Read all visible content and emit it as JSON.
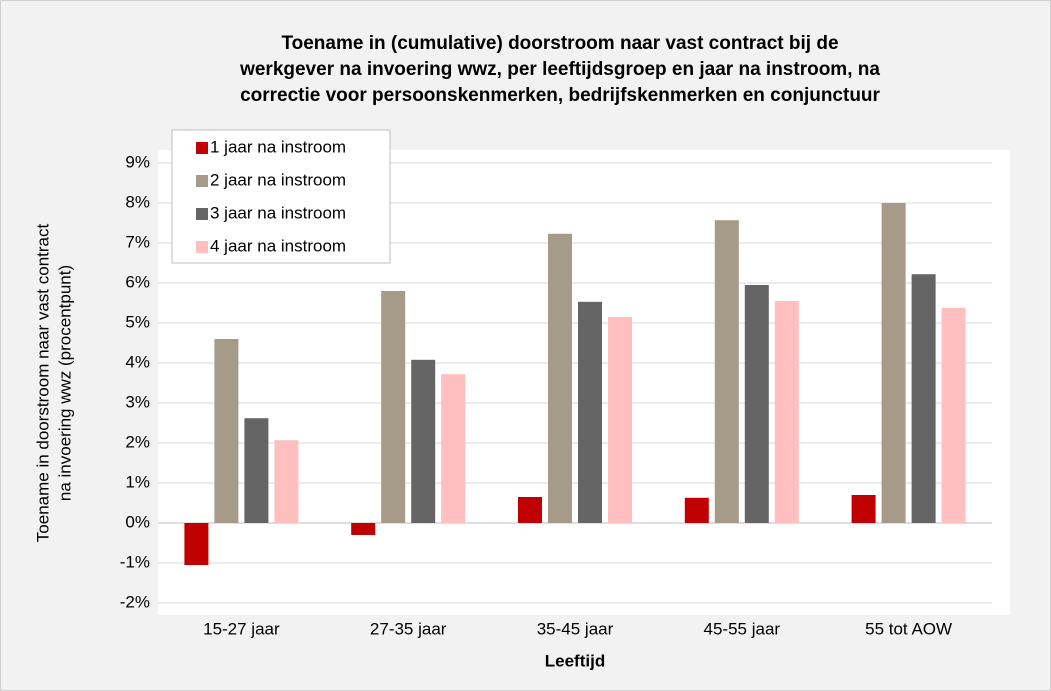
{
  "chart_data": {
    "type": "bar",
    "title": [
      "Toename in (cumulative) doorstroom naar vast contract bij de",
      "werkgever na invoering wwz, per leeftijdsgroep en jaar na instroom, na",
      "correctie voor persoonskenmerken, bedrijfskenmerken en conjunctuur"
    ],
    "ylabel": [
      "Toename in doorstroom naar vast contract",
      "na invoering wwz (procentpunt)"
    ],
    "xlabel": "Leeftijd",
    "categories": [
      "15-27 jaar",
      "27-35 jaar",
      "35-45 jaar",
      "45-55 jaar",
      "55 tot AOW"
    ],
    "series": [
      {
        "name": "1 jaar na instroom",
        "color": "#c00000",
        "values": [
          -1.05,
          -0.3,
          0.65,
          0.63,
          0.7
        ]
      },
      {
        "name": "2 jaar na instroom",
        "color": "#a59b88",
        "values": [
          4.6,
          5.8,
          7.23,
          7.57,
          8.0
        ]
      },
      {
        "name": "3 jaar na instroom",
        "color": "#656565",
        "values": [
          2.62,
          4.08,
          5.53,
          5.95,
          6.22
        ]
      },
      {
        "name": "4 jaar na instroom",
        "color": "#ffbfbf",
        "values": [
          2.07,
          3.72,
          5.15,
          5.55,
          5.38
        ]
      }
    ],
    "ylim": [
      -2,
      9
    ],
    "yticks": [
      {
        "value": -2,
        "label": "-2%"
      },
      {
        "value": -1,
        "label": "-1%"
      },
      {
        "value": 0,
        "label": "0%"
      },
      {
        "value": 1,
        "label": "1%"
      },
      {
        "value": 2,
        "label": "2%"
      },
      {
        "value": 3,
        "label": "3%"
      },
      {
        "value": 4,
        "label": "4%"
      },
      {
        "value": 5,
        "label": "5%"
      },
      {
        "value": 6,
        "label": "6%"
      },
      {
        "value": 7,
        "label": "7%"
      },
      {
        "value": 8,
        "label": "8%"
      },
      {
        "value": 9,
        "label": "9%"
      }
    ],
    "grid": true,
    "legend": "upper left"
  }
}
